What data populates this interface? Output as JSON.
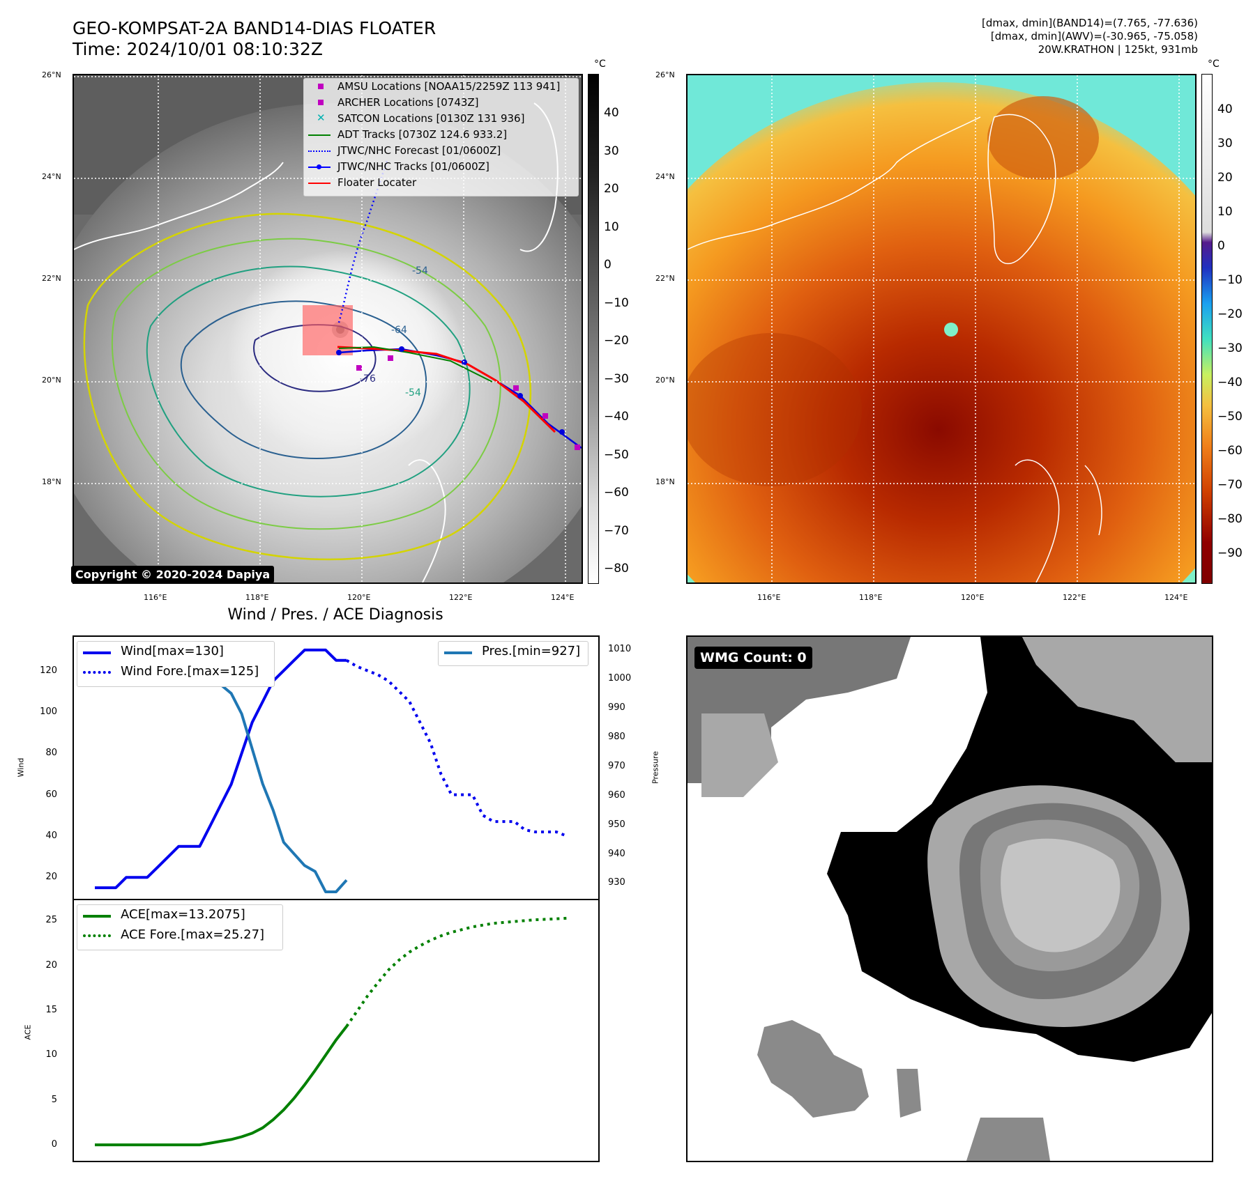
{
  "header": {
    "title_line1": "GEO-KOMPSAT-2A BAND14-DIAS FLOATER",
    "title_line2": "Time: 2024/10/01 08:10:32Z",
    "info_line1": "[dmax, dmin](BAND14)=(7.765, -77.636)",
    "info_line2": "[dmax, dmin](AWV)=(-30.965, -75.058)",
    "info_line3": "20W.KRATHON | 125kt, 931mb"
  },
  "map_axes": {
    "lat_labels": [
      "26°N",
      "24°N",
      "22°N",
      "20°N",
      "18°N"
    ],
    "lon_labels": [
      "116°E",
      "118°E",
      "120°E",
      "122°E",
      "124°E"
    ]
  },
  "left_colorbar": {
    "unit": "°C",
    "labels": [
      "40",
      "30",
      "20",
      "10",
      "0",
      "−10",
      "−20",
      "−30",
      "−40",
      "−50",
      "−60",
      "−70",
      "−80"
    ]
  },
  "right_colorbar": {
    "unit": "°C",
    "labels": [
      "40",
      "30",
      "20",
      "10",
      "0",
      "−10",
      "−20",
      "−30",
      "−40",
      "−50",
      "−60",
      "−70",
      "−80",
      "−90"
    ]
  },
  "map_legend": [
    {
      "label": "AMSU Locations [NOAA15/2259Z 113 941]",
      "marker": "square",
      "color": "#c000c0"
    },
    {
      "label": "ARCHER Locations [0743Z]",
      "marker": "square",
      "color": "#c000c0"
    },
    {
      "label": "SATCON Locations [0130Z 131 936]",
      "marker": "x",
      "color": "#00b0b0"
    },
    {
      "label": "ADT Tracks [0730Z 124.6 933.2]",
      "marker": "line",
      "color": "#008000"
    },
    {
      "label": "JTWC/NHC Forecast [01/0600Z]",
      "marker": "dotted",
      "color": "#0000ff"
    },
    {
      "label": "JTWC/NHC Tracks [01/0600Z]",
      "marker": "line-dot",
      "color": "#0000ff"
    },
    {
      "label": "Floater Locater",
      "marker": "line",
      "color": "#ff0000"
    }
  ],
  "contour_labels": [
    "-54",
    "-64",
    "-76",
    "-54"
  ],
  "copyright": "Copyright © 2020-2024 Dapiya",
  "wmg_count": "WMG Count: 0",
  "diagnosis": {
    "title": "Wind / Pres. / ACE Diagnosis",
    "wind_ylabel": "Wind",
    "pres_ylabel": "Pressure",
    "ace_ylabel": "ACE",
    "wind_legend": [
      "Wind[max=130]",
      "Wind Fore.[max=125]"
    ],
    "pres_legend": "Pres.[min=927]",
    "ace_legend": [
      "ACE[max=13.2075]",
      "ACE Fore.[max=25.27]"
    ],
    "wind_ticks": [
      "120",
      "100",
      "80",
      "60",
      "40",
      "20"
    ],
    "pres_ticks": [
      "1010",
      "1000",
      "990",
      "980",
      "970",
      "960",
      "950",
      "940",
      "930"
    ],
    "ace_ticks": [
      "25",
      "20",
      "15",
      "10",
      "5",
      "0"
    ]
  },
  "chart_data": [
    {
      "type": "line",
      "title": "Wind / Pres. / ACE Diagnosis",
      "ylabel": "Wind",
      "ylim": [
        13,
        133
      ],
      "xlim": [
        0,
        46
      ],
      "series": [
        {
          "name": "Wind[max=130]",
          "style": "solid",
          "color": "#0000ee",
          "x": [
            0,
            1,
            2,
            3,
            4,
            5,
            6,
            7,
            8,
            9,
            10,
            11,
            12,
            13,
            14,
            15,
            16,
            17,
            18,
            19,
            20,
            21,
            22,
            23,
            24
          ],
          "values": [
            15,
            15,
            15,
            20,
            20,
            20,
            25,
            30,
            35,
            35,
            35,
            45,
            55,
            65,
            80,
            95,
            105,
            115,
            120,
            125,
            130,
            130,
            130,
            125,
            125
          ]
        },
        {
          "name": "Wind Fore.[max=125]",
          "style": "dotted",
          "color": "#0000ee",
          "x": [
            24,
            25,
            26,
            27,
            28,
            29,
            30,
            31,
            32,
            33,
            34,
            35,
            36,
            37,
            38,
            39,
            40,
            41,
            42,
            43,
            44,
            45
          ],
          "values": [
            125,
            122,
            120,
            118,
            115,
            110,
            105,
            95,
            85,
            70,
            60,
            60,
            60,
            50,
            47,
            47,
            47,
            43,
            42,
            42,
            42,
            40
          ]
        }
      ]
    },
    {
      "type": "line",
      "ylabel": "Pressure",
      "ylim": [
        927,
        1012
      ],
      "xlim": [
        0,
        46
      ],
      "series": [
        {
          "name": "Pres.[min=927]",
          "style": "solid",
          "color": "#1f77b4",
          "x": [
            0,
            1,
            2,
            3,
            4,
            5,
            6,
            7,
            8,
            9,
            10,
            11,
            12,
            13,
            14,
            15,
            16,
            17,
            18,
            19,
            20,
            21,
            22,
            23,
            24
          ],
          "values": [
            1008,
            1008,
            1008,
            1006,
            1006,
            1004,
            1004,
            1003,
            1002,
            1002,
            1001,
            1000,
            998,
            995,
            988,
            976,
            964,
            955,
            944,
            940,
            936,
            934,
            927,
            927,
            931
          ]
        }
      ]
    },
    {
      "type": "line",
      "ylabel": "ACE",
      "ylim": [
        -1,
        26.5
      ],
      "xlim": [
        0,
        46
      ],
      "series": [
        {
          "name": "ACE[max=13.2075]",
          "style": "solid",
          "color": "#008000",
          "x": [
            0,
            2,
            4,
            6,
            8,
            10,
            11,
            12,
            13,
            14,
            15,
            16,
            17,
            18,
            19,
            20,
            21,
            22,
            23,
            24
          ],
          "values": [
            0,
            0,
            0,
            0,
            0,
            0,
            0.2,
            0.4,
            0.6,
            0.9,
            1.3,
            1.9,
            2.8,
            3.9,
            5.2,
            6.7,
            8.3,
            10.0,
            11.7,
            13.2
          ]
        },
        {
          "name": "ACE Fore.[max=25.27]",
          "style": "dotted",
          "color": "#008000",
          "x": [
            24,
            25,
            26,
            27,
            28,
            29,
            30,
            31,
            32,
            33,
            34,
            35,
            36,
            37,
            38,
            39,
            40,
            41,
            42,
            43,
            44,
            45
          ],
          "values": [
            13.2,
            14.9,
            16.6,
            18.1,
            19.5,
            20.6,
            21.5,
            22.2,
            22.8,
            23.3,
            23.7,
            24.0,
            24.3,
            24.5,
            24.7,
            24.8,
            24.9,
            25.0,
            25.1,
            25.15,
            25.2,
            25.27
          ]
        }
      ]
    }
  ]
}
